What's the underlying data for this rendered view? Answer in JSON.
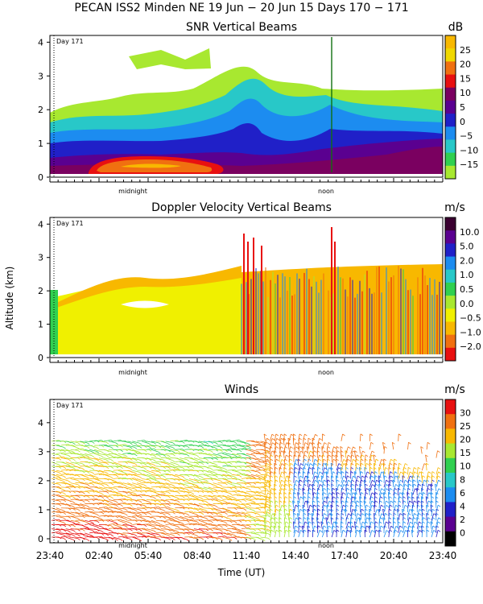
{
  "header": {
    "title": "PECAN ISS2 Minden NE  19 Jun − 20 Jun 15 Days 170 − 171"
  },
  "common": {
    "day_label": "Day 171",
    "midnight": "midnight",
    "noon": "noon",
    "y_axis_label": "Altitude (km)",
    "x_axis_label": "Time (UT)"
  },
  "colors": {
    "ramp": [
      "#000000",
      "#5a0070",
      "#2020c8",
      "#1c8cf0",
      "#28c8c8",
      "#30d050",
      "#a8e830",
      "#f0f000",
      "#f8b800",
      "#f07010",
      "#e81010"
    ]
  },
  "chart_data": [
    {
      "type": "heatmap",
      "title": "SNR Vertical Beams",
      "unit": "dB",
      "ylim": [
        0,
        4.2
      ],
      "yticks": [
        "0",
        "1",
        "2",
        "3",
        "4"
      ],
      "colorbar": {
        "labels": [
          "25",
          "20",
          "15",
          "10",
          "5",
          "0",
          "−5",
          "−10",
          "−15"
        ],
        "colors": [
          "#f8b800",
          "#f0d800",
          "#f07010",
          "#e81010",
          "#7a0060",
          "#5a0090",
          "#2020c8",
          "#1c8cf0",
          "#28c8c8",
          "#30d050",
          "#a8e830"
        ]
      }
    },
    {
      "type": "heatmap",
      "title": "Doppler Velocity Vertical Beams",
      "unit": "m/s",
      "ylim": [
        0,
        4.2
      ],
      "yticks": [
        "0",
        "1",
        "2",
        "3",
        "4"
      ],
      "colorbar": {
        "labels": [
          "10.0",
          "5.0",
          "2.0",
          "1.0",
          "0.5",
          "0.0",
          "−0.5",
          "−1.0",
          "−2.0"
        ],
        "colors": [
          "#3a0030",
          "#5a0090",
          "#2020c8",
          "#1c8cf0",
          "#28c8c8",
          "#30d050",
          "#a8e830",
          "#f0f000",
          "#f8b800",
          "#f07010",
          "#e81010"
        ]
      }
    },
    {
      "type": "barbs",
      "title": "Winds",
      "unit": "m/s",
      "ylim": [
        0,
        4.8
      ],
      "yticks": [
        "0",
        "1",
        "2",
        "3",
        "4"
      ],
      "x_ticks": [
        "23:40",
        "02:40",
        "05:40",
        "08:40",
        "11:40",
        "14:40",
        "17:40",
        "20:40",
        "23:40"
      ],
      "colorbar": {
        "labels": [
          "30",
          "25",
          "20",
          "15",
          "10",
          "8",
          "6",
          "4",
          "2",
          "0"
        ],
        "colors": [
          "#e81010",
          "#f07010",
          "#f8b800",
          "#a8e830",
          "#30d050",
          "#28c8c8",
          "#1c8cf0",
          "#2020c8",
          "#5a0090",
          "#000000"
        ]
      }
    }
  ]
}
